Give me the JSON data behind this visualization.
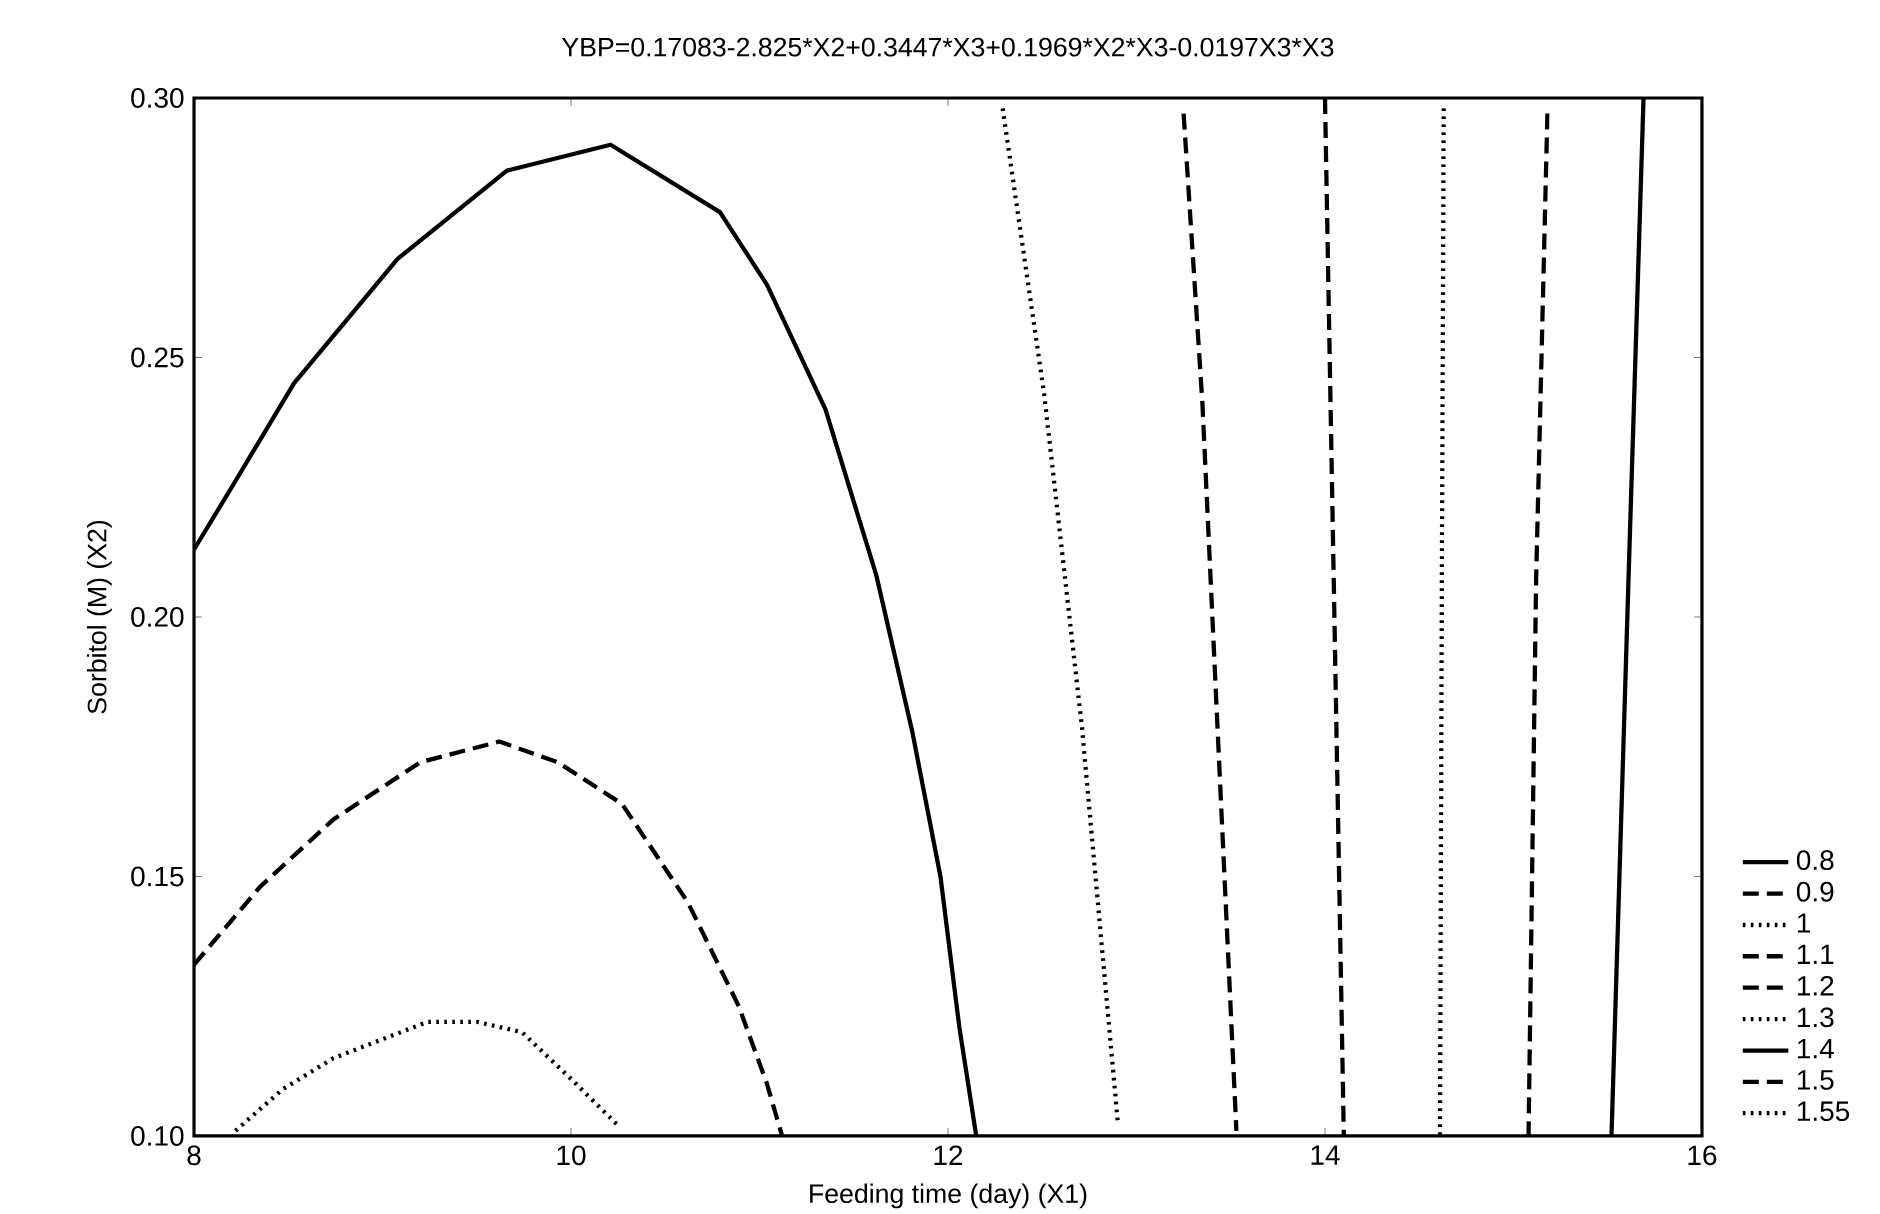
{
  "chart_data": {
    "type": "line",
    "title": "YBP=0.17083-2.825*X2+0.3447*X3+0.1969*X2*X3-0.0197X3*X3",
    "xlabel": "Feeding time (day) (X1)",
    "ylabel": "Sorbitol (M) (X2)",
    "xlim": [
      8,
      16
    ],
    "ylim": [
      0.1,
      0.3
    ],
    "xticks": [
      8,
      10,
      12,
      14,
      16
    ],
    "yticks": [
      {
        "value": 0.1,
        "label": "0.10"
      },
      {
        "value": 0.15,
        "label": "0.15"
      },
      {
        "value": 0.2,
        "label": "0.20"
      },
      {
        "value": 0.25,
        "label": "0.25"
      },
      {
        "value": 0.3,
        "label": "0.30"
      }
    ],
    "legend": "right",
    "grid": false,
    "marker": "none",
    "series": [
      {
        "name": "0.8",
        "color": "#000000",
        "line_style": "solid",
        "x": [
          15.69,
          15.61,
          15.52
        ],
        "values": [
          0.3,
          0.207,
          0.1
        ]
      },
      {
        "name": "0.9",
        "color": "#000000",
        "line_style": "dashed",
        "x": [
          15.18,
          15.12,
          15.08
        ],
        "values": [
          0.297,
          0.207,
          0.1
        ]
      },
      {
        "name": "1",
        "color": "#000000",
        "line_style": "dotted",
        "x": [
          14.63,
          14.62,
          14.61
        ],
        "values": [
          0.298,
          0.207,
          0.1
        ]
      },
      {
        "name": "1.1",
        "color": "#000000",
        "line_style": "dashed",
        "x": [
          14.0,
          14.04,
          14.1
        ],
        "values": [
          0.3,
          0.22,
          0.1
        ]
      },
      {
        "name": "1.2",
        "color": "#000000",
        "line_style": "dashed",
        "x": [
          13.25,
          13.35,
          13.45,
          13.53
        ],
        "values": [
          0.297,
          0.241,
          0.163,
          0.101
        ]
      },
      {
        "name": "1.3",
        "color": "#000000",
        "line_style": "dotted",
        "x": [
          12.29,
          12.51,
          12.71,
          12.9
        ],
        "values": [
          0.298,
          0.243,
          0.179,
          0.103
        ]
      },
      {
        "name": "1.4",
        "color": "#000000",
        "line_style": "solid",
        "x": [
          8,
          8.2,
          8.53,
          9.08,
          9.66,
          10.21,
          10.79,
          11.04,
          11.35,
          11.62,
          11.81,
          11.96,
          12.06,
          12.15
        ],
        "values": [
          0.213,
          0.225,
          0.245,
          0.269,
          0.286,
          0.291,
          0.278,
          0.264,
          0.24,
          0.208,
          0.178,
          0.15,
          0.121,
          0.1
        ]
      },
      {
        "name": "1.5",
        "color": "#000000",
        "line_style": "dashed",
        "x": [
          8,
          8.35,
          8.74,
          9.2,
          9.62,
          9.93,
          10.27,
          10.62,
          10.89,
          11.04,
          11.12
        ],
        "values": [
          0.133,
          0.148,
          0.161,
          0.172,
          0.176,
          0.172,
          0.164,
          0.145,
          0.125,
          0.11,
          0.1
        ]
      },
      {
        "name": "1.55",
        "color": "#000000",
        "line_style": "dotted",
        "x": [
          8.22,
          8.47,
          8.74,
          9.24,
          9.5,
          9.74,
          10.0,
          10.25
        ],
        "values": [
          0.101,
          0.109,
          0.115,
          0.122,
          0.122,
          0.12,
          0.111,
          0.102
        ]
      }
    ]
  }
}
